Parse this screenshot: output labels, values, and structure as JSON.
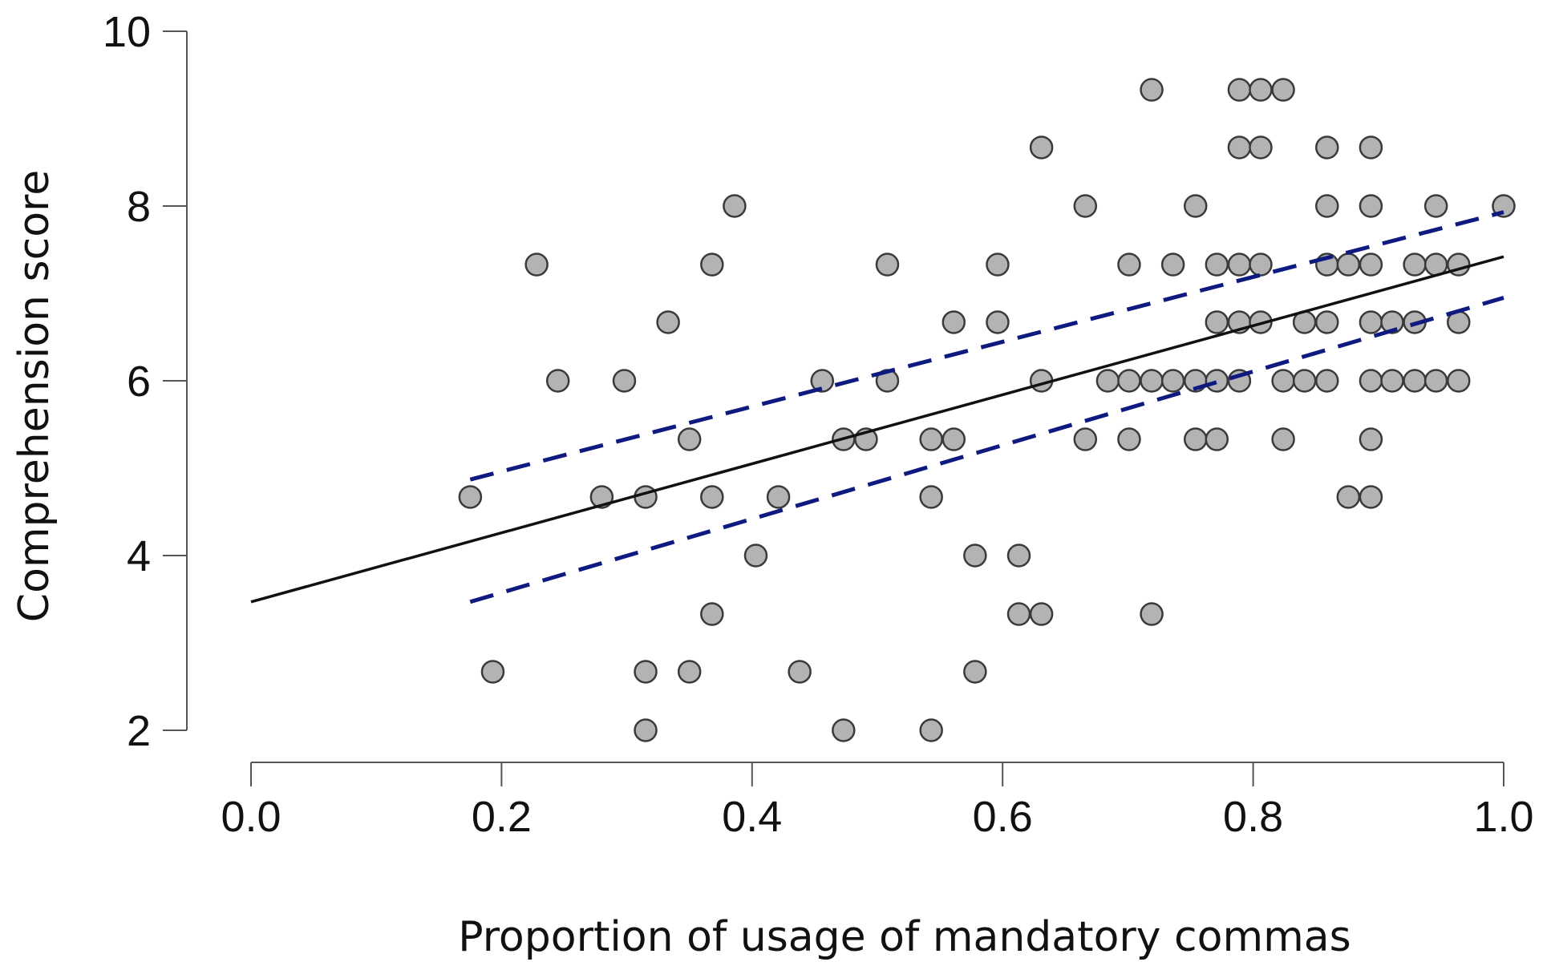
{
  "chart_data": {
    "type": "scatter",
    "title": "",
    "xlabel": "Proportion of usage of mandatory commas",
    "ylabel": "Comprehension score",
    "xlim": [
      0.0,
      1.0
    ],
    "ylim": [
      2.0,
      10.0
    ],
    "xticks": [
      0.0,
      0.2,
      0.4,
      0.6,
      0.8,
      1.0
    ],
    "xtick_labels": [
      "0.0",
      "0.2",
      "0.4",
      "0.6",
      "0.8",
      "1.0"
    ],
    "yticks": [
      2,
      4,
      6,
      8,
      10
    ],
    "ytick_labels": [
      "2",
      "4",
      "6",
      "8",
      "10"
    ],
    "grid": false,
    "points": [
      [
        0.175,
        4.67
      ],
      [
        0.193,
        2.67
      ],
      [
        0.228,
        7.33
      ],
      [
        0.245,
        6.0
      ],
      [
        0.28,
        4.67
      ],
      [
        0.298,
        6.0
      ],
      [
        0.315,
        4.67
      ],
      [
        0.315,
        2.67
      ],
      [
        0.315,
        2.0
      ],
      [
        0.333,
        6.67
      ],
      [
        0.35,
        5.33
      ],
      [
        0.35,
        2.67
      ],
      [
        0.368,
        7.33
      ],
      [
        0.368,
        4.67
      ],
      [
        0.368,
        3.33
      ],
      [
        0.386,
        8.0
      ],
      [
        0.403,
        4.0
      ],
      [
        0.421,
        4.67
      ],
      [
        0.438,
        2.67
      ],
      [
        0.456,
        6.0
      ],
      [
        0.473,
        5.33
      ],
      [
        0.473,
        2.0
      ],
      [
        0.491,
        5.33
      ],
      [
        0.508,
        7.33
      ],
      [
        0.508,
        6.0
      ],
      [
        0.543,
        5.33
      ],
      [
        0.543,
        4.67
      ],
      [
        0.543,
        2.0
      ],
      [
        0.561,
        6.67
      ],
      [
        0.561,
        5.33
      ],
      [
        0.578,
        4.0
      ],
      [
        0.578,
        2.67
      ],
      [
        0.596,
        7.33
      ],
      [
        0.596,
        6.67
      ],
      [
        0.613,
        4.0
      ],
      [
        0.613,
        3.33
      ],
      [
        0.631,
        8.67
      ],
      [
        0.631,
        6.0
      ],
      [
        0.631,
        3.33
      ],
      [
        0.666,
        8.0
      ],
      [
        0.666,
        5.33
      ],
      [
        0.684,
        6.0
      ],
      [
        0.701,
        7.33
      ],
      [
        0.701,
        6.0
      ],
      [
        0.701,
        5.33
      ],
      [
        0.719,
        9.33
      ],
      [
        0.719,
        6.0
      ],
      [
        0.719,
        3.33
      ],
      [
        0.736,
        7.33
      ],
      [
        0.736,
        6.0
      ],
      [
        0.754,
        8.0
      ],
      [
        0.754,
        6.0
      ],
      [
        0.754,
        5.33
      ],
      [
        0.771,
        7.33
      ],
      [
        0.771,
        6.67
      ],
      [
        0.771,
        6.0
      ],
      [
        0.771,
        5.33
      ],
      [
        0.789,
        9.33
      ],
      [
        0.789,
        8.67
      ],
      [
        0.789,
        7.33
      ],
      [
        0.789,
        6.67
      ],
      [
        0.789,
        6.0
      ],
      [
        0.806,
        9.33
      ],
      [
        0.806,
        8.67
      ],
      [
        0.806,
        7.33
      ],
      [
        0.806,
        6.67
      ],
      [
        0.824,
        9.33
      ],
      [
        0.824,
        6.0
      ],
      [
        0.824,
        5.33
      ],
      [
        0.841,
        6.67
      ],
      [
        0.841,
        6.0
      ],
      [
        0.859,
        8.67
      ],
      [
        0.859,
        8.0
      ],
      [
        0.859,
        7.33
      ],
      [
        0.859,
        6.67
      ],
      [
        0.859,
        6.0
      ],
      [
        0.876,
        7.33
      ],
      [
        0.876,
        4.67
      ],
      [
        0.894,
        8.67
      ],
      [
        0.894,
        8.0
      ],
      [
        0.894,
        7.33
      ],
      [
        0.894,
        6.67
      ],
      [
        0.894,
        6.0
      ],
      [
        0.894,
        5.33
      ],
      [
        0.894,
        4.67
      ],
      [
        0.911,
        6.67
      ],
      [
        0.911,
        6.0
      ],
      [
        0.929,
        7.33
      ],
      [
        0.929,
        6.67
      ],
      [
        0.929,
        6.0
      ],
      [
        0.946,
        8.0
      ],
      [
        0.946,
        7.33
      ],
      [
        0.946,
        6.0
      ],
      [
        0.964,
        7.33
      ],
      [
        0.964,
        6.67
      ],
      [
        0.964,
        6.0
      ],
      [
        1.0,
        8.0
      ]
    ],
    "regression_line": {
      "x": [
        0.0,
        1.0
      ],
      "y": [
        3.47,
        7.42
      ]
    },
    "confidence_band": {
      "upper": {
        "x": [
          0.175,
          1.0
        ],
        "y": [
          4.87,
          7.93
        ]
      },
      "lower": {
        "x": [
          0.175,
          1.0
        ],
        "y": [
          3.47,
          6.95
        ]
      }
    },
    "colors": {
      "point_fill": "#b3b3b3",
      "point_stroke": "#3a3a3a",
      "regression": "#111111",
      "confidence": "#0f1a80",
      "axis": "#555555"
    }
  }
}
